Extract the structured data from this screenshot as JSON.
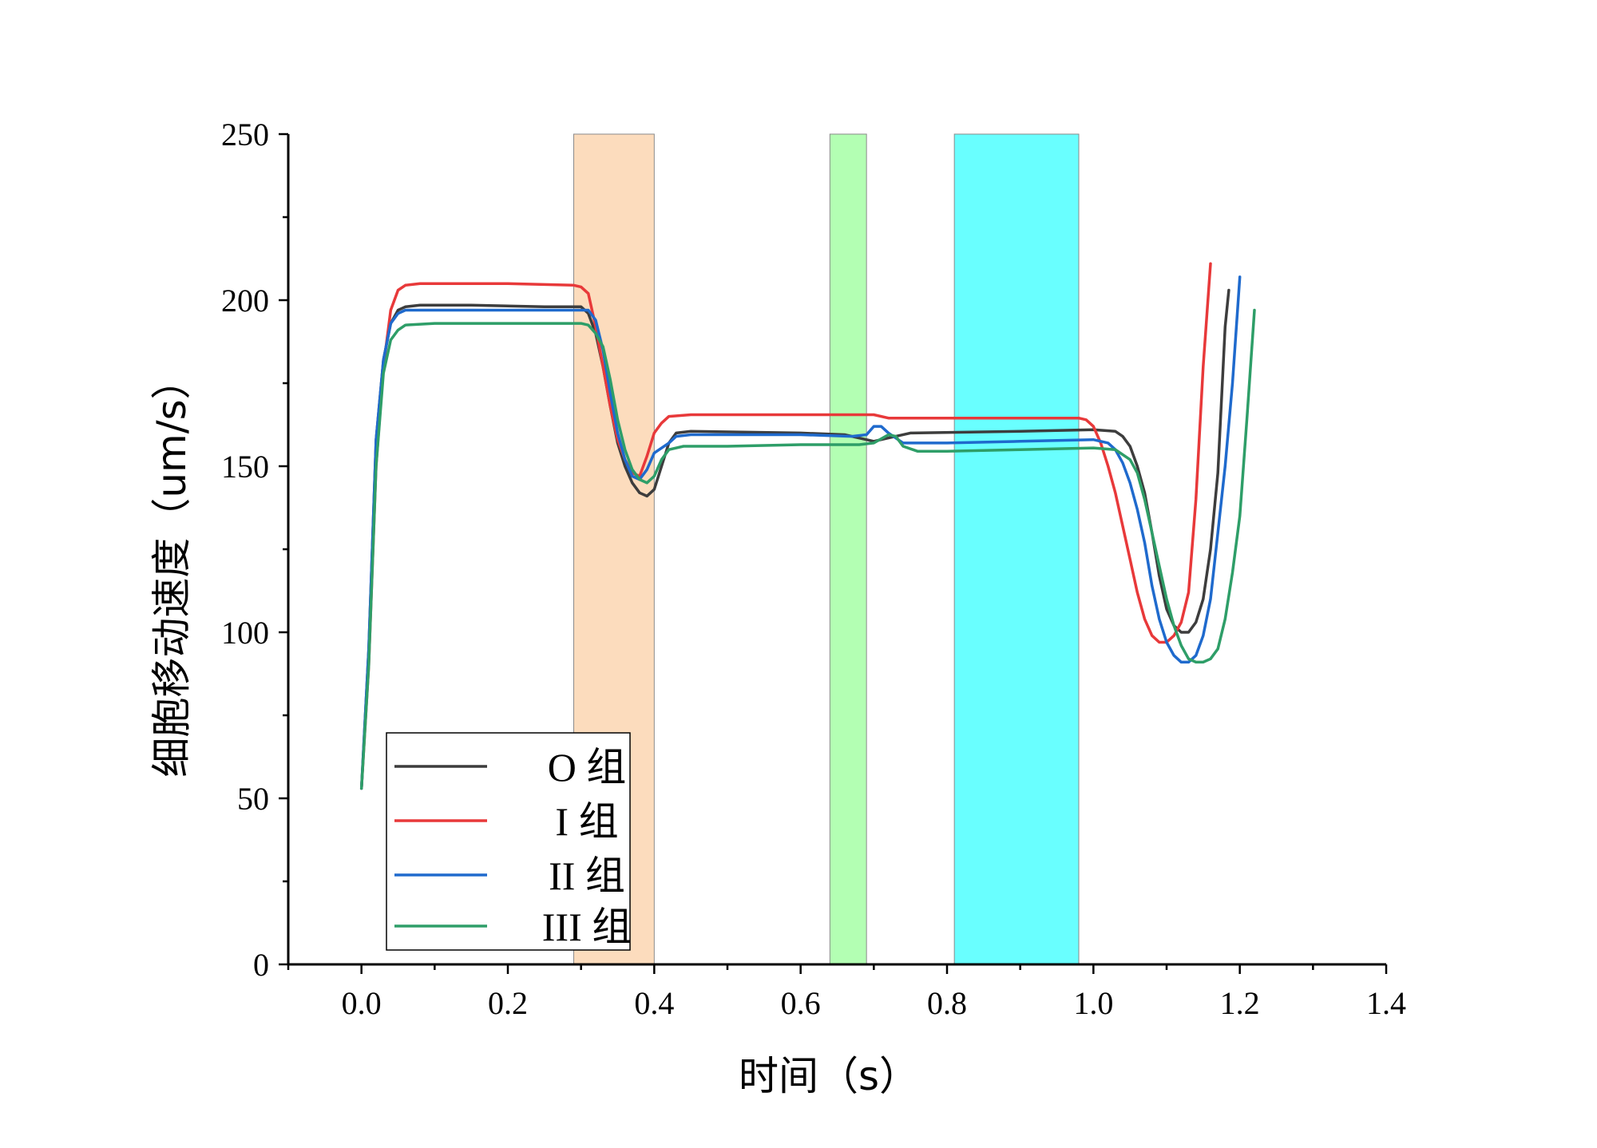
{
  "chart_data": {
    "type": "line",
    "title": "",
    "xlabel": "时间（s）",
    "ylabel": "细胞移动速度（um/s）",
    "xlim": [
      -0.1,
      1.4
    ],
    "ylim": [
      0,
      250
    ],
    "x_ticks": [
      0.0,
      0.2,
      0.4,
      0.6,
      0.8,
      1.0,
      1.2,
      1.4
    ],
    "x_tick_labels": [
      "0.0",
      "0.2",
      "0.4",
      "0.6",
      "0.8",
      "1.0",
      "1.2",
      "1.4"
    ],
    "y_ticks": [
      0,
      50,
      100,
      150,
      200,
      250
    ],
    "y_tick_labels": [
      "0",
      "50",
      "100",
      "150",
      "200",
      "250"
    ],
    "grid": false,
    "legend_position": "bottom-left",
    "shaded_regions": [
      {
        "x0": 0.29,
        "x1": 0.4,
        "color": "#fcdcbd"
      },
      {
        "x0": 0.64,
        "x1": 0.69,
        "color": "#b3ffb3"
      },
      {
        "x0": 0.81,
        "x1": 0.98,
        "color": "#69ffff"
      }
    ],
    "series": [
      {
        "name": "O 组",
        "color": "#3d3d3d",
        "points": [
          [
            0.0,
            53
          ],
          [
            0.01,
            95
          ],
          [
            0.02,
            158
          ],
          [
            0.03,
            182
          ],
          [
            0.04,
            193
          ],
          [
            0.05,
            197
          ],
          [
            0.06,
            198
          ],
          [
            0.08,
            198.5
          ],
          [
            0.15,
            198.5
          ],
          [
            0.25,
            198
          ],
          [
            0.3,
            198
          ],
          [
            0.31,
            196
          ],
          [
            0.32,
            190
          ],
          [
            0.33,
            180
          ],
          [
            0.34,
            168
          ],
          [
            0.35,
            157
          ],
          [
            0.36,
            150
          ],
          [
            0.37,
            145
          ],
          [
            0.38,
            142
          ],
          [
            0.39,
            141
          ],
          [
            0.4,
            143
          ],
          [
            0.41,
            150
          ],
          [
            0.42,
            157
          ],
          [
            0.43,
            160
          ],
          [
            0.45,
            160.5
          ],
          [
            0.6,
            160
          ],
          [
            0.66,
            159.5
          ],
          [
            0.7,
            157.5
          ],
          [
            0.72,
            158.5
          ],
          [
            0.75,
            160
          ],
          [
            0.9,
            160.5
          ],
          [
            1.0,
            161
          ],
          [
            1.03,
            160.5
          ],
          [
            1.04,
            159
          ],
          [
            1.05,
            156
          ],
          [
            1.06,
            150
          ],
          [
            1.07,
            142
          ],
          [
            1.08,
            130
          ],
          [
            1.09,
            117
          ],
          [
            1.1,
            107
          ],
          [
            1.11,
            102
          ],
          [
            1.12,
            100
          ],
          [
            1.13,
            100
          ],
          [
            1.14,
            103
          ],
          [
            1.15,
            110
          ],
          [
            1.16,
            125
          ],
          [
            1.17,
            148
          ],
          [
            1.18,
            192
          ],
          [
            1.185,
            203
          ]
        ]
      },
      {
        "name": "I 组",
        "color": "#e8393a",
        "points": [
          [
            0.0,
            53
          ],
          [
            0.01,
            90
          ],
          [
            0.02,
            150
          ],
          [
            0.03,
            180
          ],
          [
            0.04,
            197
          ],
          [
            0.05,
            203
          ],
          [
            0.06,
            204.5
          ],
          [
            0.08,
            205
          ],
          [
            0.2,
            205
          ],
          [
            0.29,
            204.5
          ],
          [
            0.3,
            204
          ],
          [
            0.31,
            202
          ],
          [
            0.32,
            192
          ],
          [
            0.33,
            180
          ],
          [
            0.34,
            168
          ],
          [
            0.35,
            158
          ],
          [
            0.36,
            152
          ],
          [
            0.37,
            148
          ],
          [
            0.38,
            147
          ],
          [
            0.39,
            153
          ],
          [
            0.4,
            160
          ],
          [
            0.41,
            163
          ],
          [
            0.42,
            165
          ],
          [
            0.45,
            165.5
          ],
          [
            0.6,
            165.5
          ],
          [
            0.7,
            165.5
          ],
          [
            0.72,
            164.5
          ],
          [
            0.8,
            164.5
          ],
          [
            0.98,
            164.5
          ],
          [
            0.99,
            164
          ],
          [
            1.0,
            162
          ],
          [
            1.01,
            157
          ],
          [
            1.02,
            150
          ],
          [
            1.03,
            142
          ],
          [
            1.04,
            132
          ],
          [
            1.05,
            122
          ],
          [
            1.06,
            112
          ],
          [
            1.07,
            104
          ],
          [
            1.08,
            99
          ],
          [
            1.09,
            97
          ],
          [
            1.1,
            97
          ],
          [
            1.11,
            99
          ],
          [
            1.12,
            103
          ],
          [
            1.13,
            112
          ],
          [
            1.14,
            140
          ],
          [
            1.15,
            180
          ],
          [
            1.16,
            211
          ]
        ]
      },
      {
        "name": "II 组",
        "color": "#1f6acd",
        "points": [
          [
            0.0,
            53
          ],
          [
            0.01,
            95
          ],
          [
            0.02,
            158
          ],
          [
            0.03,
            182
          ],
          [
            0.04,
            193
          ],
          [
            0.05,
            196
          ],
          [
            0.06,
            197
          ],
          [
            0.1,
            197
          ],
          [
            0.25,
            197
          ],
          [
            0.31,
            197
          ],
          [
            0.32,
            194
          ],
          [
            0.33,
            185
          ],
          [
            0.34,
            172
          ],
          [
            0.35,
            160
          ],
          [
            0.36,
            152
          ],
          [
            0.37,
            147
          ],
          [
            0.38,
            146
          ],
          [
            0.39,
            149
          ],
          [
            0.4,
            154
          ],
          [
            0.42,
            157
          ],
          [
            0.43,
            159
          ],
          [
            0.45,
            159.5
          ],
          [
            0.6,
            159.5
          ],
          [
            0.67,
            159
          ],
          [
            0.69,
            159.5
          ],
          [
            0.7,
            162
          ],
          [
            0.71,
            162
          ],
          [
            0.72,
            160
          ],
          [
            0.74,
            157
          ],
          [
            0.8,
            157
          ],
          [
            0.9,
            157.5
          ],
          [
            1.0,
            158
          ],
          [
            1.02,
            157
          ],
          [
            1.03,
            155
          ],
          [
            1.04,
            151
          ],
          [
            1.05,
            145
          ],
          [
            1.06,
            137
          ],
          [
            1.07,
            127
          ],
          [
            1.08,
            114
          ],
          [
            1.09,
            104
          ],
          [
            1.1,
            97
          ],
          [
            1.11,
            93
          ],
          [
            1.12,
            91
          ],
          [
            1.13,
            91
          ],
          [
            1.14,
            93
          ],
          [
            1.15,
            99
          ],
          [
            1.16,
            110
          ],
          [
            1.17,
            130
          ],
          [
            1.18,
            150
          ],
          [
            1.19,
            175
          ],
          [
            1.2,
            207
          ]
        ]
      },
      {
        "name": "III 组",
        "color": "#2e9e68",
        "points": [
          [
            0.0,
            53
          ],
          [
            0.01,
            90
          ],
          [
            0.02,
            150
          ],
          [
            0.03,
            178
          ],
          [
            0.04,
            188
          ],
          [
            0.05,
            191
          ],
          [
            0.06,
            192.5
          ],
          [
            0.1,
            193
          ],
          [
            0.2,
            193
          ],
          [
            0.3,
            193
          ],
          [
            0.31,
            192.5
          ],
          [
            0.32,
            190
          ],
          [
            0.33,
            186
          ],
          [
            0.34,
            176
          ],
          [
            0.35,
            164
          ],
          [
            0.36,
            155
          ],
          [
            0.37,
            149
          ],
          [
            0.38,
            146
          ],
          [
            0.39,
            145
          ],
          [
            0.4,
            147
          ],
          [
            0.41,
            152
          ],
          [
            0.42,
            155
          ],
          [
            0.44,
            156
          ],
          [
            0.5,
            156
          ],
          [
            0.6,
            156.5
          ],
          [
            0.68,
            156.5
          ],
          [
            0.7,
            157
          ],
          [
            0.72,
            159.5
          ],
          [
            0.73,
            159
          ],
          [
            0.74,
            156
          ],
          [
            0.76,
            154.5
          ],
          [
            0.8,
            154.5
          ],
          [
            0.9,
            155
          ],
          [
            1.0,
            155.5
          ],
          [
            1.03,
            155
          ],
          [
            1.05,
            152
          ],
          [
            1.06,
            148
          ],
          [
            1.07,
            140
          ],
          [
            1.08,
            130
          ],
          [
            1.09,
            120
          ],
          [
            1.1,
            110
          ],
          [
            1.11,
            102
          ],
          [
            1.12,
            96
          ],
          [
            1.13,
            92
          ],
          [
            1.14,
            91
          ],
          [
            1.15,
            91
          ],
          [
            1.16,
            92
          ],
          [
            1.17,
            95
          ],
          [
            1.18,
            104
          ],
          [
            1.19,
            118
          ],
          [
            1.2,
            135
          ],
          [
            1.21,
            165
          ],
          [
            1.22,
            197
          ]
        ]
      }
    ]
  }
}
